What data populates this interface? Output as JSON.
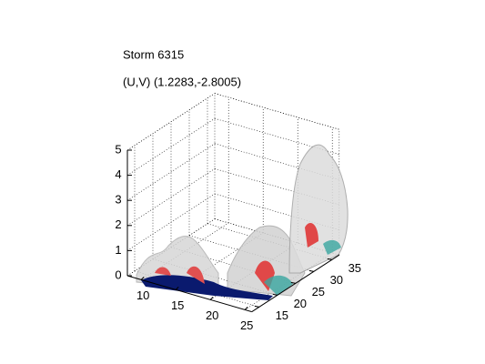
{
  "chart_data": {
    "type": "surface3d",
    "title": "Storm 6315",
    "subtitle": "(U,V) (1.2283,-2.8005)",
    "xlim": [
      8,
      26
    ],
    "xticks": [
      10,
      15,
      20,
      25
    ],
    "ylim": [
      13,
      37
    ],
    "yticks": [
      15,
      20,
      25,
      30,
      35
    ],
    "zlim": [
      0,
      5
    ],
    "zticks": [
      0,
      1,
      2,
      3,
      4,
      5
    ],
    "grid": true
  }
}
